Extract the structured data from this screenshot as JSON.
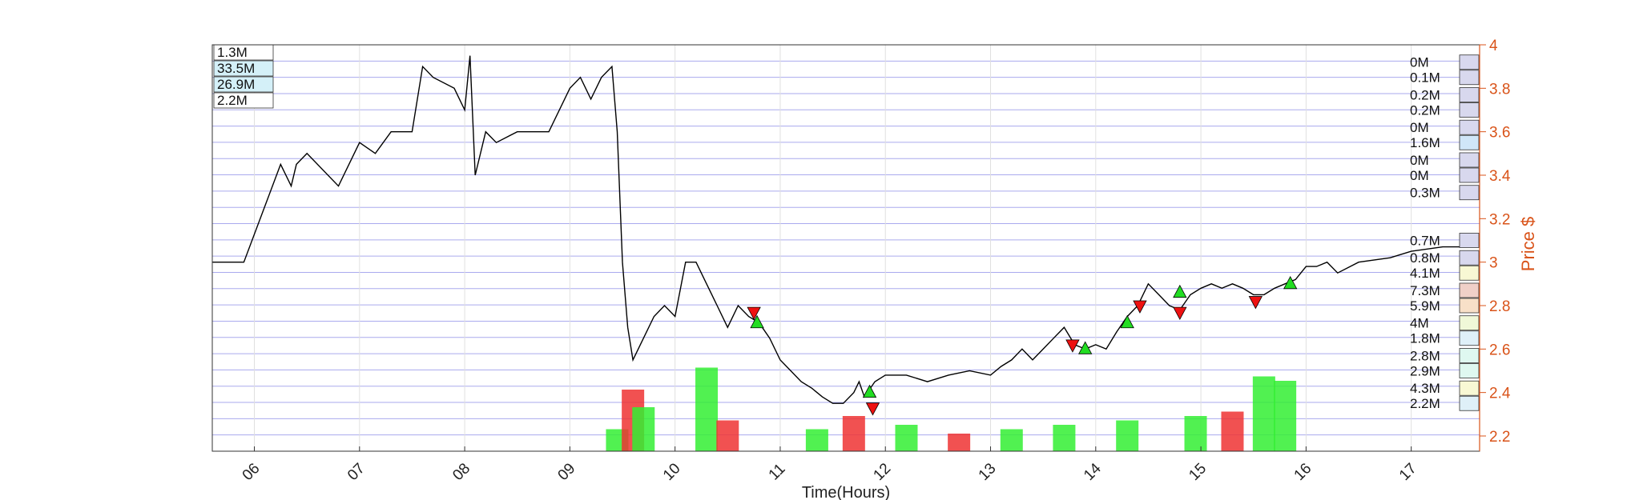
{
  "chart_data": {
    "type": "line",
    "xlabel": "Time(Hours)",
    "ylabel": "Price $",
    "xlim": [
      5.6,
      17.65
    ],
    "ylim": [
      2.13,
      4.0
    ],
    "x_ticks": [
      "06",
      "07",
      "08",
      "09",
      "10",
      "11",
      "12",
      "13",
      "14",
      "15",
      "16",
      "17"
    ],
    "x_tick_values": [
      6,
      7,
      8,
      9,
      10,
      11,
      12,
      13,
      14,
      15,
      16,
      17
    ],
    "y_ticks": [
      "2.2",
      "2.4",
      "2.6",
      "2.8",
      "3",
      "3.2",
      "3.4",
      "3.6",
      "3.8",
      "4"
    ],
    "y_tick_values": [
      2.2,
      2.4,
      2.6,
      2.8,
      3.0,
      3.2,
      3.4,
      3.6,
      3.8,
      4.0
    ],
    "price_series": {
      "name": "Price",
      "x": [
        5.6,
        5.9,
        6.25,
        6.35,
        6.4,
        6.5,
        6.8,
        7.0,
        7.15,
        7.3,
        7.5,
        7.6,
        7.7,
        7.9,
        8.0,
        8.05,
        8.1,
        8.2,
        8.3,
        8.5,
        8.8,
        9.0,
        9.1,
        9.2,
        9.3,
        9.4,
        9.45,
        9.5,
        9.55,
        9.6,
        9.7,
        9.8,
        9.9,
        10.0,
        10.1,
        10.2,
        10.3,
        10.4,
        10.5,
        10.6,
        10.7,
        10.8,
        10.9,
        11.0,
        11.1,
        11.2,
        11.3,
        11.4,
        11.5,
        11.6,
        11.7,
        11.75,
        11.8,
        11.9,
        12.0,
        12.2,
        12.4,
        12.6,
        12.8,
        13.0,
        13.1,
        13.2,
        13.3,
        13.4,
        13.5,
        13.6,
        13.7,
        13.8,
        13.9,
        14.0,
        14.1,
        14.2,
        14.3,
        14.4,
        14.5,
        14.6,
        14.7,
        14.8,
        14.9,
        15.0,
        15.1,
        15.2,
        15.3,
        15.4,
        15.5,
        15.6,
        15.7,
        15.8,
        15.9,
        16.0,
        16.1,
        16.2,
        16.3,
        16.5,
        16.8,
        17.0,
        17.3,
        17.6
      ],
      "y": [
        3.0,
        3.0,
        3.45,
        3.35,
        3.45,
        3.5,
        3.35,
        3.55,
        3.5,
        3.6,
        3.6,
        3.9,
        3.85,
        3.8,
        3.7,
        3.95,
        3.4,
        3.6,
        3.55,
        3.6,
        3.6,
        3.8,
        3.85,
        3.75,
        3.85,
        3.9,
        3.6,
        3.0,
        2.7,
        2.55,
        2.65,
        2.75,
        2.8,
        2.75,
        3.0,
        3.0,
        2.9,
        2.8,
        2.7,
        2.8,
        2.75,
        2.72,
        2.65,
        2.55,
        2.5,
        2.45,
        2.42,
        2.38,
        2.35,
        2.35,
        2.4,
        2.45,
        2.38,
        2.45,
        2.48,
        2.48,
        2.45,
        2.48,
        2.5,
        2.48,
        2.52,
        2.55,
        2.6,
        2.55,
        2.6,
        2.65,
        2.7,
        2.62,
        2.6,
        2.62,
        2.6,
        2.68,
        2.75,
        2.8,
        2.9,
        2.85,
        2.8,
        2.78,
        2.85,
        2.88,
        2.9,
        2.88,
        2.9,
        2.88,
        2.85,
        2.85,
        2.88,
        2.9,
        2.92,
        2.98,
        2.98,
        3.0,
        2.95,
        3.0,
        3.02,
        3.05,
        3.07,
        3.07
      ]
    },
    "volume_at_price": [
      {
        "label": "0M",
        "price": 3.92,
        "color": "#d8d8ee"
      },
      {
        "label": "0.1M",
        "price": 3.85,
        "color": "#d8d8ee"
      },
      {
        "label": "0.2M",
        "price": 3.77,
        "color": "#d8d8ee"
      },
      {
        "label": "0.2M",
        "price": 3.7,
        "color": "#d8d8ee"
      },
      {
        "label": "0M",
        "price": 3.62,
        "color": "#d8d8ee"
      },
      {
        "label": "1.6M",
        "price": 3.55,
        "color": "#d0e6f8"
      },
      {
        "label": "0M",
        "price": 3.47,
        "color": "#d8d8ee"
      },
      {
        "label": "0M",
        "price": 3.4,
        "color": "#d8d8ee"
      },
      {
        "label": "0.3M",
        "price": 3.32,
        "color": "#d8d8ee"
      },
      {
        "label": "0.7M",
        "price": 3.1,
        "color": "#d8d8ee"
      },
      {
        "label": "0.8M",
        "price": 3.02,
        "color": "#d8d8ee"
      },
      {
        "label": "4.1M",
        "price": 2.95,
        "color": "#f8f8d4"
      },
      {
        "label": "7.3M",
        "price": 2.87,
        "color": "#f0d0c8"
      },
      {
        "label": "5.9M",
        "price": 2.8,
        "color": "#f8e0c8"
      },
      {
        "label": "4M",
        "price": 2.72,
        "color": "#f0f8d8"
      },
      {
        "label": "1.8M",
        "price": 2.65,
        "color": "#dff0f8"
      },
      {
        "label": "2.8M",
        "price": 2.57,
        "color": "#dff8f0"
      },
      {
        "label": "2.9M",
        "price": 2.5,
        "color": "#dff8f0"
      },
      {
        "label": "4.3M",
        "price": 2.42,
        "color": "#f8f8d4"
      },
      {
        "label": "2.2M",
        "price": 2.35,
        "color": "#dff0f8"
      }
    ],
    "volume_legend": [
      {
        "label": "1.3M",
        "color": "#ffffff"
      },
      {
        "label": "33.5M",
        "color": "#d4f0f8"
      },
      {
        "label": "26.9M",
        "color": "#d4f0f8"
      },
      {
        "label": "2.2M",
        "color": "#ffffff"
      }
    ],
    "buy_markers": [
      [
        10.78,
        2.72
      ],
      [
        11.85,
        2.4
      ],
      [
        13.9,
        2.6
      ],
      [
        14.3,
        2.72
      ],
      [
        14.8,
        2.86
      ],
      [
        15.85,
        2.9
      ]
    ],
    "sell_markers": [
      [
        10.75,
        2.77
      ],
      [
        11.88,
        2.33
      ],
      [
        13.78,
        2.62
      ],
      [
        14.42,
        2.8
      ],
      [
        14.8,
        2.77
      ],
      [
        15.52,
        2.82
      ]
    ],
    "volume_bars": {
      "x": [
        9.45,
        9.6,
        9.7,
        10.3,
        10.5,
        11.35,
        11.7,
        12.2,
        12.7,
        13.2,
        13.7,
        14.3,
        14.95,
        15.3,
        15.6,
        15.8
      ],
      "values": [
        0.25,
        0.7,
        0.5,
        0.95,
        0.35,
        0.25,
        0.4,
        0.3,
        0.2,
        0.25,
        0.3,
        0.35,
        0.4,
        0.45,
        0.85,
        0.8
      ],
      "colors": [
        "#33ee33",
        "#ee3333",
        "#33ee33",
        "#33ee33",
        "#ee3333",
        "#33ee33",
        "#ee3333",
        "#33ee33",
        "#ee3333",
        "#33ee33",
        "#33ee33",
        "#33ee33",
        "#33ee33",
        "#ee3333",
        "#33ee33",
        "#33ee33"
      ]
    },
    "colors": {
      "axis_right": "#d95319",
      "grid": "#aaaaee",
      "price": "#000000",
      "buy": "#22dd22",
      "sell": "#ee1111"
    }
  }
}
